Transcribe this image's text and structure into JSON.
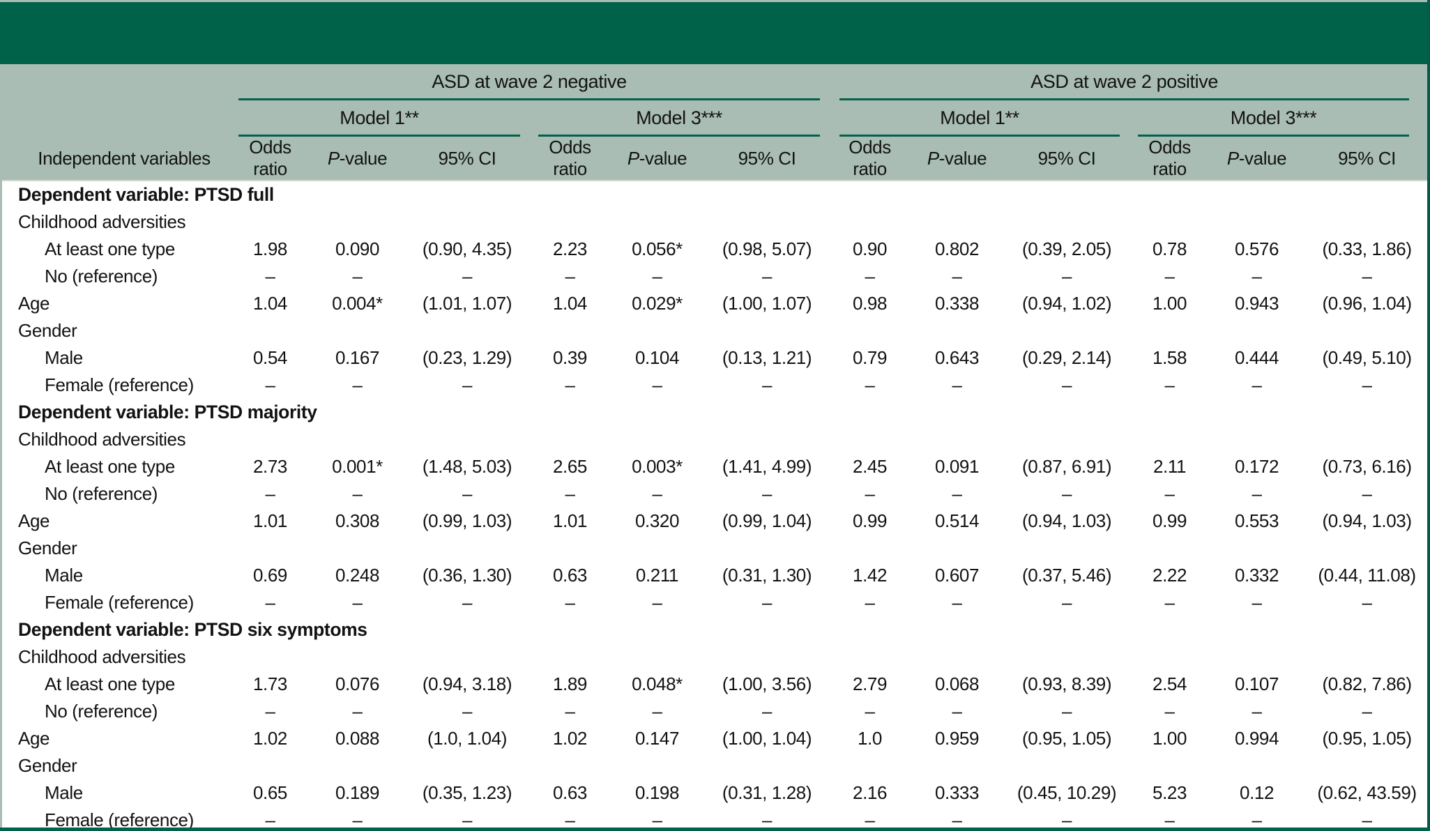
{
  "table": {
    "colors": {
      "brand_dark_green": "#006349",
      "header_sage": "#a9bdb4",
      "rule_green": "#006349",
      "body_background": "#ffffff",
      "text": "#121212"
    },
    "stub_header": "Independent variables",
    "col_groups": [
      {
        "label": "ASD at wave 2 negative",
        "models": [
          "Model 1**",
          "Model 3***"
        ]
      },
      {
        "label": "ASD at wave 2 positive",
        "models": [
          "Model 1**",
          "Model 3***"
        ]
      }
    ],
    "sub_headers": [
      "Odds ratio",
      "P-value",
      "95% CI"
    ],
    "rows": [
      {
        "type": "section",
        "label": "Dependent variable: PTSD full"
      },
      {
        "type": "group",
        "label": "Childhood adversities"
      },
      {
        "type": "data",
        "indent": true,
        "label": "At least one type",
        "values": [
          "1.98",
          "0.090",
          "(0.90, 4.35)",
          "2.23",
          "0.056*",
          "(0.98, 5.07)",
          "0.90",
          "0.802",
          "(0.39, 2.05)",
          "0.78",
          "0.576",
          "(0.33, 1.86)"
        ]
      },
      {
        "type": "data",
        "indent": true,
        "label": "No (reference)",
        "values": [
          "–",
          "–",
          "–",
          "–",
          "–",
          "–",
          "–",
          "–",
          "–",
          "–",
          "–",
          "–"
        ]
      },
      {
        "type": "data",
        "indent": false,
        "label": "Age",
        "values": [
          "1.04",
          "0.004*",
          "(1.01, 1.07)",
          "1.04",
          "0.029*",
          "(1.00, 1.07)",
          "0.98",
          "0.338",
          "(0.94, 1.02)",
          "1.00",
          "0.943",
          "(0.96, 1.04)"
        ]
      },
      {
        "type": "group",
        "label": "Gender"
      },
      {
        "type": "data",
        "indent": true,
        "label": "Male",
        "values": [
          "0.54",
          "0.167",
          "(0.23, 1.29)",
          "0.39",
          "0.104",
          "(0.13, 1.21)",
          "0.79",
          "0.643",
          "(0.29, 2.14)",
          "1.58",
          "0.444",
          "(0.49, 5.10)"
        ]
      },
      {
        "type": "data",
        "indent": true,
        "label": "Female (reference)",
        "values": [
          "–",
          "–",
          "–",
          "–",
          "–",
          "–",
          "–",
          "–",
          "–",
          "–",
          "–",
          "–"
        ]
      },
      {
        "type": "section",
        "label": "Dependent variable: PTSD majority"
      },
      {
        "type": "group",
        "label": "Childhood adversities"
      },
      {
        "type": "data",
        "indent": true,
        "label": "At least one type",
        "values": [
          "2.73",
          "0.001*",
          "(1.48, 5.03)",
          "2.65",
          "0.003*",
          "(1.41, 4.99)",
          "2.45",
          "0.091",
          "(0.87, 6.91)",
          "2.11",
          "0.172",
          "(0.73, 6.16)"
        ]
      },
      {
        "type": "data",
        "indent": true,
        "label": "No (reference)",
        "values": [
          "–",
          "–",
          "–",
          "–",
          "–",
          "–",
          "–",
          "–",
          "–",
          "–",
          "–",
          "–"
        ]
      },
      {
        "type": "data",
        "indent": false,
        "label": "Age",
        "values": [
          "1.01",
          "0.308",
          "(0.99, 1.03)",
          "1.01",
          "0.320",
          "(0.99, 1.04)",
          "0.99",
          "0.514",
          "(0.94, 1.03)",
          "0.99",
          "0.553",
          "(0.94, 1.03)"
        ]
      },
      {
        "type": "group",
        "label": "Gender"
      },
      {
        "type": "data",
        "indent": true,
        "label": "Male",
        "values": [
          "0.69",
          "0.248",
          "(0.36, 1.30)",
          "0.63",
          "0.211",
          "(0.31, 1.30)",
          "1.42",
          "0.607",
          "(0.37, 5.46)",
          "2.22",
          "0.332",
          "(0.44, 11.08)"
        ]
      },
      {
        "type": "data",
        "indent": true,
        "label": "Female (reference)",
        "values": [
          "–",
          "–",
          "–",
          "–",
          "–",
          "–",
          "–",
          "–",
          "–",
          "–",
          "–",
          "–"
        ]
      },
      {
        "type": "section",
        "label": "Dependent variable: PTSD six symptoms"
      },
      {
        "type": "group",
        "label": "Childhood adversities"
      },
      {
        "type": "data",
        "indent": true,
        "label": "At least one type",
        "values": [
          "1.73",
          "0.076",
          "(0.94, 3.18)",
          "1.89",
          "0.048*",
          "(1.00, 3.56)",
          "2.79",
          "0.068",
          "(0.93, 8.39)",
          "2.54",
          "0.107",
          "(0.82, 7.86)"
        ]
      },
      {
        "type": "data",
        "indent": true,
        "label": "No (reference)",
        "values": [
          "–",
          "–",
          "–",
          "–",
          "–",
          "–",
          "–",
          "–",
          "–",
          "–",
          "–",
          "–"
        ]
      },
      {
        "type": "data",
        "indent": false,
        "label": "Age",
        "values": [
          "1.02",
          "0.088",
          "(1.0, 1.04)",
          "1.02",
          "0.147",
          "(1.00, 1.04)",
          "1.0",
          "0.959",
          "(0.95, 1.05)",
          "1.00",
          "0.994",
          "(0.95, 1.05)"
        ]
      },
      {
        "type": "group",
        "label": "Gender"
      },
      {
        "type": "data",
        "indent": true,
        "label": "Male",
        "values": [
          "0.65",
          "0.189",
          "(0.35, 1.23)",
          "0.63",
          "0.198",
          "(0.31, 1.28)",
          "2.16",
          "0.333",
          "(0.45, 10.29)",
          "5.23",
          "0.12",
          "(0.62, 43.59)"
        ]
      },
      {
        "type": "data",
        "indent": true,
        "label": "Female (reference)",
        "values": [
          "–",
          "–",
          "–",
          "–",
          "–",
          "–",
          "–",
          "–",
          "–",
          "–",
          "–",
          "–"
        ]
      }
    ]
  }
}
